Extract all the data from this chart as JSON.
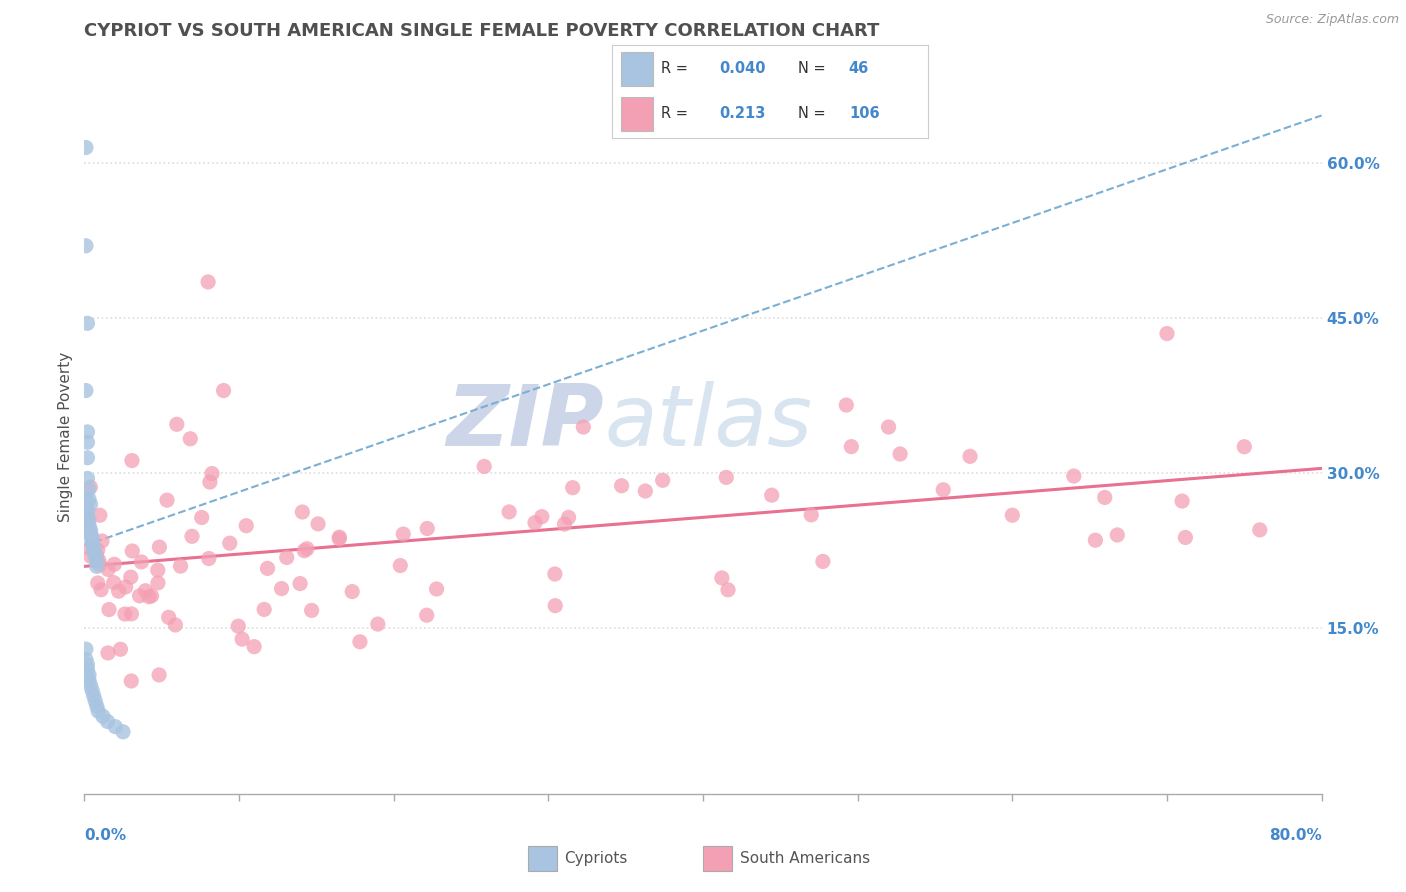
{
  "title": "CYPRIOT VS SOUTH AMERICAN SINGLE FEMALE POVERTY CORRELATION CHART",
  "source": "Source: ZipAtlas.com",
  "ylabel": "Single Female Poverty",
  "y_tick_labels": [
    "15.0%",
    "30.0%",
    "45.0%",
    "60.0%"
  ],
  "y_tick_values": [
    0.15,
    0.3,
    0.45,
    0.6
  ],
  "xlim": [
    0.0,
    0.8
  ],
  "ylim": [
    -0.01,
    0.68
  ],
  "legend_R_cypriot": "0.040",
  "legend_N_cypriot": "46",
  "legend_R_south_american": "0.213",
  "legend_N_south_american": "106",
  "cypriot_color": "#a8c4e0",
  "south_american_color": "#f4a0b4",
  "trend_cypriot_color": "#7bafd4",
  "trend_south_american_color": "#e87090",
  "watermark_zip": "ZIP",
  "watermark_atlas": "atlas",
  "watermark_color": "#dde6f0",
  "background_color": "#ffffff",
  "title_color": "#505050",
  "axis_label_color": "#4488cc",
  "legend_R_color": "#4488cc",
  "grid_color": "#dddddd"
}
